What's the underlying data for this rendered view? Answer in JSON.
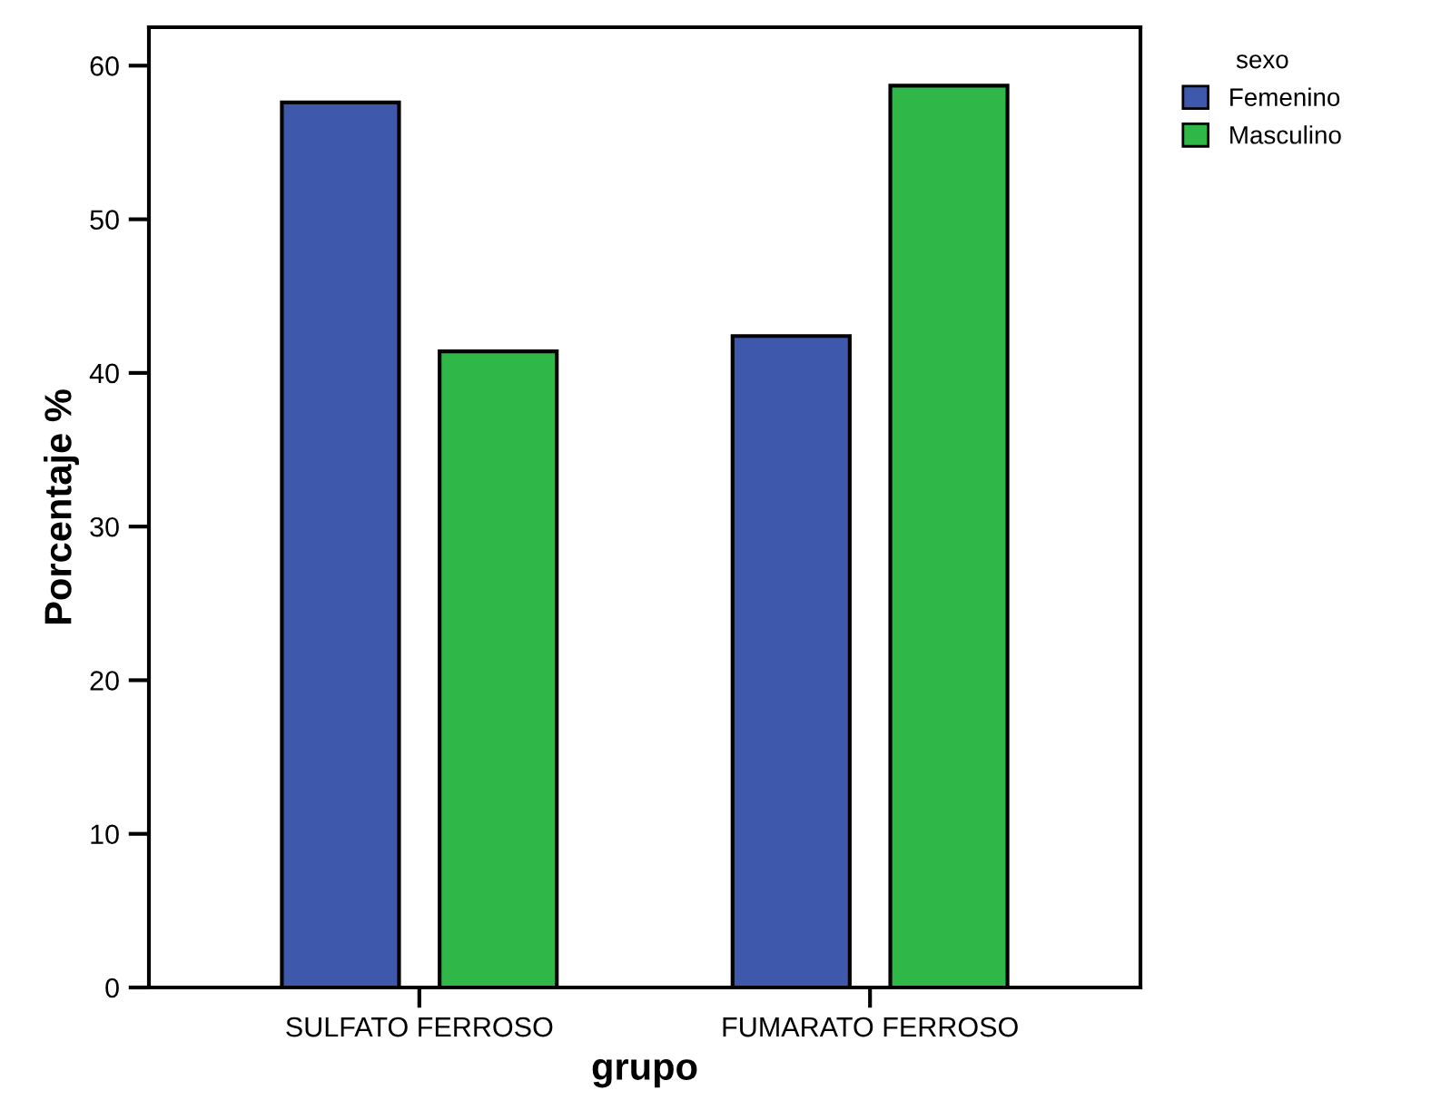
{
  "chart_data": {
    "type": "bar",
    "xlabel": "grupo",
    "ylabel": "Porcentaje %",
    "legend_title": "sexo",
    "categories": [
      "SULFATO FERROSO",
      "FUMARATO FERROSO"
    ],
    "series": [
      {
        "name": "Femenino",
        "color": "#3e58ab",
        "values": [
          57.6,
          42.4
        ]
      },
      {
        "name": "Masculino",
        "color": "#2fb847",
        "values": [
          41.4,
          58.7
        ]
      }
    ],
    "ylim": [
      0,
      62.5
    ],
    "yticks": [
      0,
      10,
      20,
      30,
      40,
      50,
      60
    ],
    "grid": false,
    "legend": "top right"
  }
}
